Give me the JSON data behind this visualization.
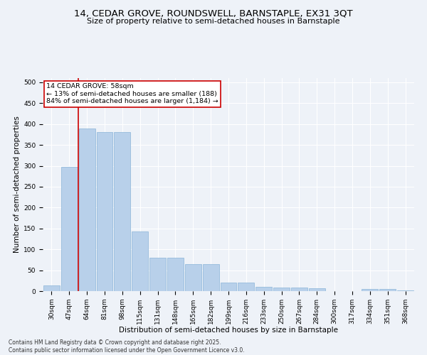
{
  "title1": "14, CEDAR GROVE, ROUNDSWELL, BARNSTAPLE, EX31 3QT",
  "title2": "Size of property relative to semi-detached houses in Barnstaple",
  "xlabel": "Distribution of semi-detached houses by size in Barnstaple",
  "ylabel": "Number of semi-detached properties",
  "categories": [
    "30sqm",
    "47sqm",
    "64sqm",
    "81sqm",
    "98sqm",
    "115sqm",
    "131sqm",
    "148sqm",
    "165sqm",
    "182sqm",
    "199sqm",
    "216sqm",
    "233sqm",
    "250sqm",
    "267sqm",
    "284sqm",
    "300sqm",
    "317sqm",
    "334sqm",
    "351sqm",
    "368sqm"
  ],
  "values": [
    13,
    297,
    390,
    381,
    381,
    143,
    80,
    80,
    65,
    65,
    20,
    20,
    10,
    8,
    8,
    6,
    0,
    0,
    5,
    5,
    2
  ],
  "bar_color": "#b8d0ea",
  "bar_edge_color": "#8ab4d8",
  "vline_color": "#cc0000",
  "vline_x": 1.5,
  "annotation_text": "14 CEDAR GROVE: 58sqm\n← 13% of semi-detached houses are smaller (188)\n84% of semi-detached houses are larger (1,184) →",
  "annotation_box_color": "#ffffff",
  "annotation_box_edge": "#cc0000",
  "background_color": "#eef2f8",
  "grid_color": "#ffffff",
  "footer": "Contains HM Land Registry data © Crown copyright and database right 2025.\nContains public sector information licensed under the Open Government Licence v3.0.",
  "ylim": [
    0,
    510
  ],
  "yticks": [
    0,
    50,
    100,
    150,
    200,
    250,
    300,
    350,
    400,
    450,
    500
  ],
  "title1_fontsize": 9.5,
  "title2_fontsize": 8,
  "tick_fontsize": 6.5,
  "ylabel_fontsize": 7.5,
  "xlabel_fontsize": 7.5,
  "footer_fontsize": 5.5
}
